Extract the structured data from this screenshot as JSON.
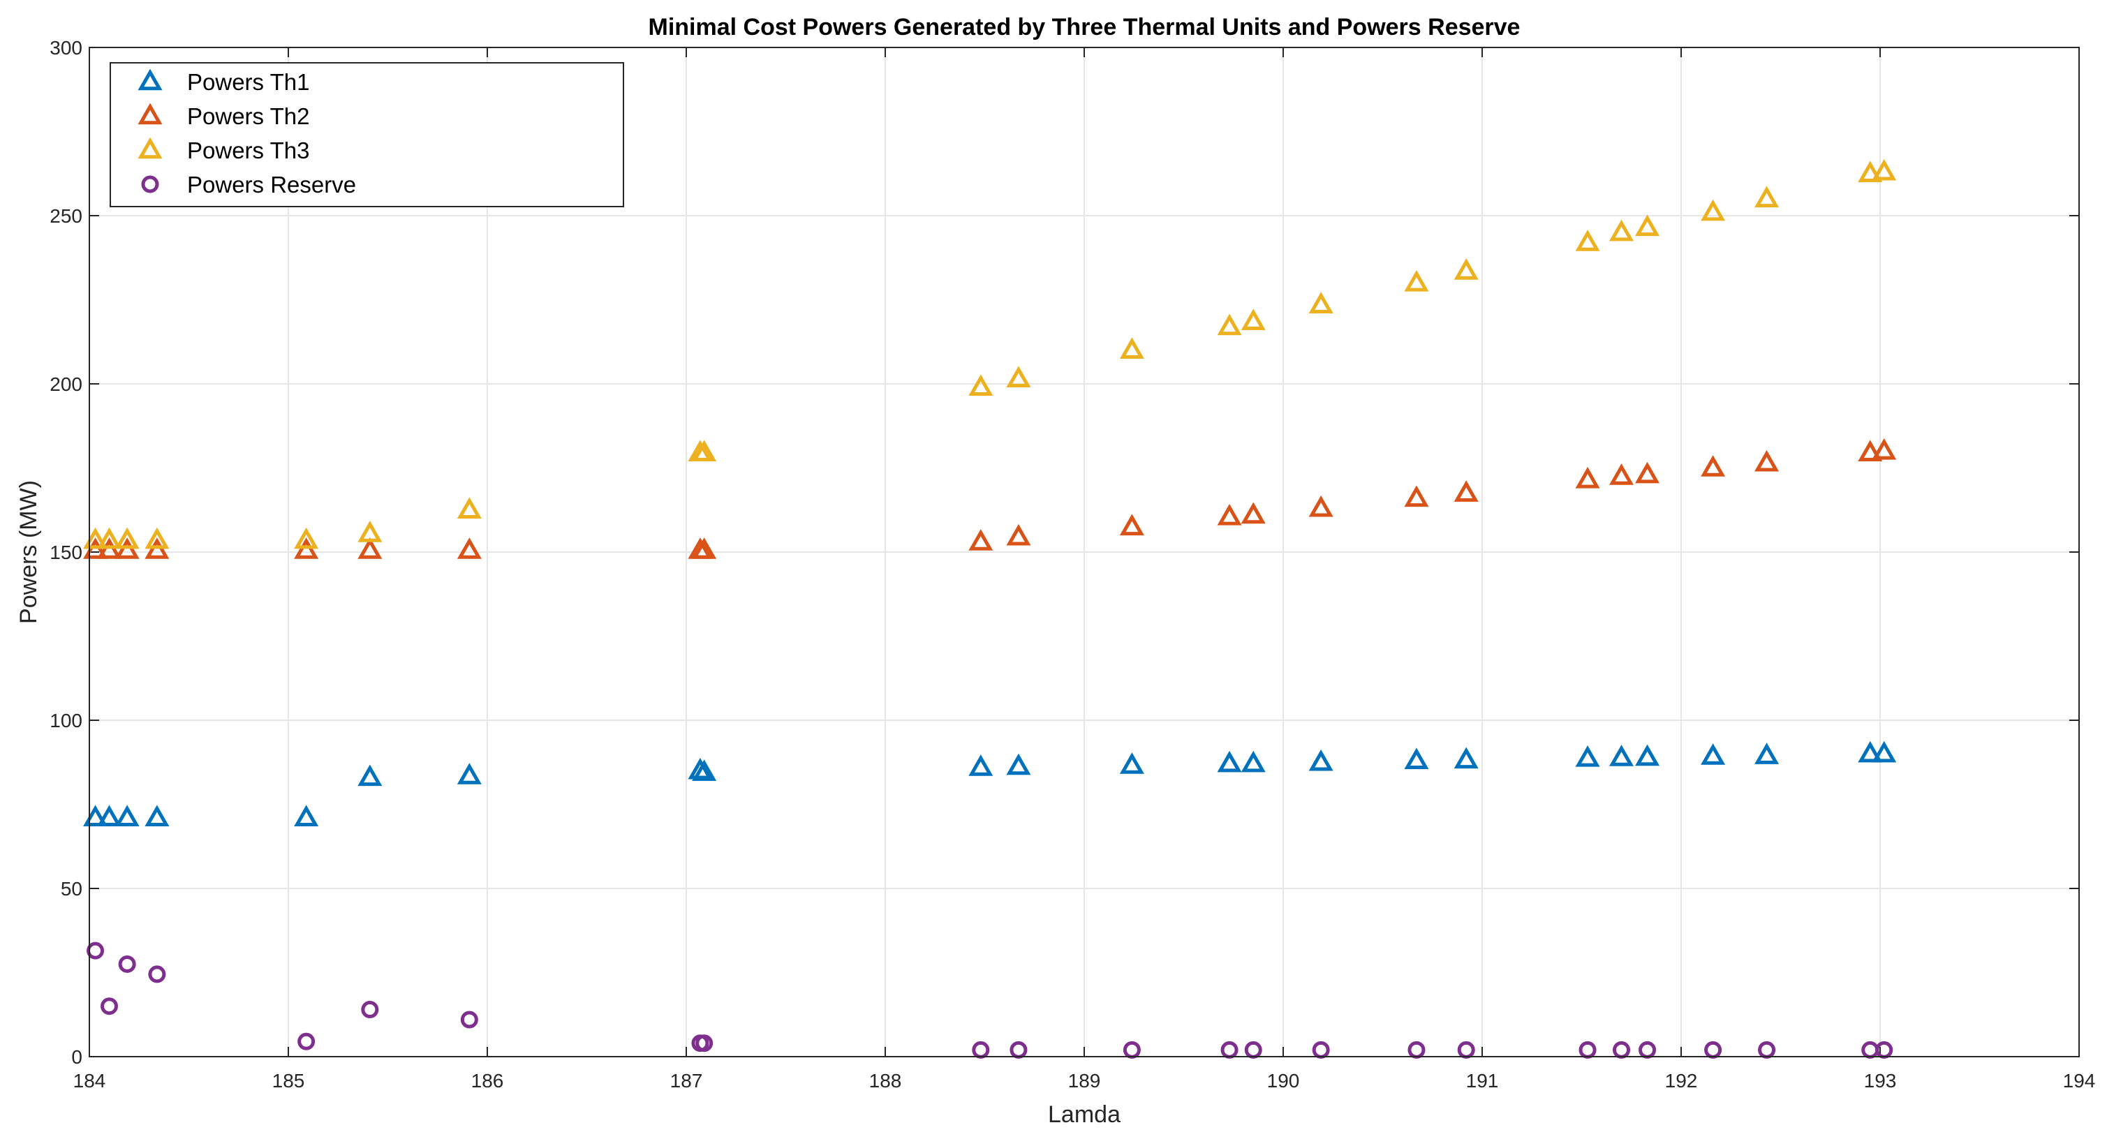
{
  "chart_data": {
    "type": "scatter",
    "title": "Minimal Cost Powers Generated by Three Thermal Units and Powers Reserve",
    "xlabel": "Lamda",
    "ylabel": "Powers (MW)",
    "xlim": [
      184,
      194
    ],
    "ylim": [
      0,
      300
    ],
    "xticks": [
      184,
      185,
      186,
      187,
      188,
      189,
      190,
      191,
      192,
      193,
      194
    ],
    "yticks": [
      0,
      50,
      100,
      150,
      200,
      250,
      300
    ],
    "grid": true,
    "legend_position": "top-left",
    "x": [
      184.03,
      184.1,
      184.19,
      184.34,
      185.09,
      185.41,
      185.91,
      187.07,
      187.09,
      188.48,
      188.67,
      189.24,
      189.73,
      189.85,
      190.19,
      190.67,
      190.92,
      191.53,
      191.7,
      191.83,
      192.16,
      192.43,
      192.95,
      193.02
    ],
    "series": [
      {
        "name": "Powers Th1",
        "marker": "triangle",
        "color": "#0072BD",
        "values": [
          71,
          71,
          71,
          71,
          71,
          83,
          83.5,
          85,
          84.5,
          86,
          86.3,
          86.6,
          87.1,
          87.1,
          87.5,
          88,
          88.2,
          88.7,
          88.9,
          89,
          89.3,
          89.5,
          90,
          90
        ]
      },
      {
        "name": "Powers Th2",
        "marker": "triangle",
        "color": "#D95319",
        "values": [
          150.5,
          150.5,
          150.5,
          150.5,
          150.5,
          150.5,
          150.5,
          150.5,
          150.5,
          153,
          154.5,
          157.5,
          160.5,
          161,
          163,
          166,
          167.5,
          171.5,
          172.5,
          173,
          175,
          176.5,
          179.5,
          180
        ]
      },
      {
        "name": "Powers Th3",
        "marker": "triangle",
        "color": "#EDB120",
        "values": [
          153.5,
          153.5,
          153.5,
          153.5,
          153.5,
          155.5,
          162.5,
          179.5,
          179.5,
          199,
          201.5,
          210,
          217,
          218.5,
          223.5,
          230,
          233.5,
          242,
          245,
          246.5,
          251,
          255,
          262.5,
          263
        ]
      },
      {
        "name": "Powers Reserve",
        "marker": "circle",
        "color": "#7E2F8E",
        "values": [
          31.5,
          15,
          27.5,
          24.5,
          4.5,
          14,
          11,
          4,
          4,
          2,
          2,
          2,
          2,
          2,
          2,
          2,
          2,
          2,
          2,
          2,
          2,
          2,
          2,
          2
        ]
      }
    ]
  }
}
